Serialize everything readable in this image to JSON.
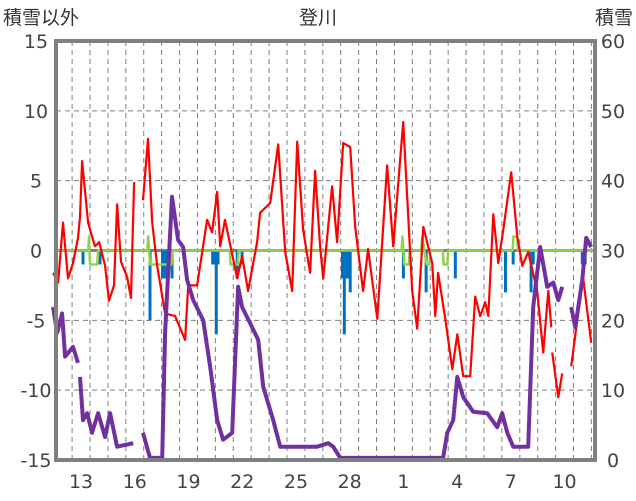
{
  "chart_data": {
    "type": "line",
    "title": "登川",
    "ylabel_left": "積雪以外",
    "ylabel_right": "積雪",
    "ylim_left": [
      -15,
      15
    ],
    "ylim_right": [
      0,
      60
    ],
    "yticks_left": [
      "15",
      "10",
      "5",
      "0",
      "-5",
      "-10",
      "-15"
    ],
    "yticks_right": [
      "60",
      "50",
      "40",
      "30",
      "20",
      "10",
      "0"
    ],
    "xlim_days": [
      -1.4,
      28.7
    ],
    "x_note": "x = days after the 13th",
    "xticks": [
      {
        "t": 0,
        "label": "13"
      },
      {
        "t": 3,
        "label": "16"
      },
      {
        "t": 6,
        "label": "19"
      },
      {
        "t": 9,
        "label": "22"
      },
      {
        "t": 12,
        "label": "25"
      },
      {
        "t": 15,
        "label": "28"
      },
      {
        "t": 18,
        "label": "1"
      },
      {
        "t": 21,
        "label": "4"
      },
      {
        "t": 24,
        "label": "7"
      },
      {
        "t": 27,
        "label": "10"
      }
    ],
    "grid": true,
    "colors": {
      "temperature": "#ff0000",
      "snow": "#7030a0",
      "precip": "#0070c0",
      "green": "#92d050",
      "axis": "#808080"
    },
    "series": [
      {
        "name": "temperature",
        "axis": "left",
        "points": [
          [
            -1.56,
            -1.6
          ],
          [
            -1.28,
            -2.3
          ],
          [
            -1.01,
            2
          ],
          [
            -0.73,
            -2
          ],
          [
            -0.45,
            -0.9
          ],
          [
            -0.17,
            0.9
          ],
          [
            -0.06,
            2.4
          ],
          [
            0.06,
            6.4
          ],
          [
            0.39,
            2
          ],
          [
            0.61,
            1
          ],
          [
            0.78,
            0.3
          ],
          [
            1.01,
            0.6
          ],
          [
            1.34,
            -1.1
          ],
          [
            1.56,
            -3.6
          ],
          [
            1.84,
            -2.5
          ],
          [
            2.01,
            3.3
          ],
          [
            2.23,
            -0.8
          ],
          [
            2.57,
            -1.9
          ],
          [
            2.79,
            -3.4
          ],
          [
            2.96,
            4.9
          ],
          null,
          [
            3.46,
            3.6
          ],
          [
            3.74,
            8
          ],
          [
            3.97,
            2
          ],
          [
            4.25,
            -1.1
          ],
          [
            4.69,
            -4.5
          ],
          [
            5.25,
            -4.7
          ],
          [
            5.81,
            -6.4
          ],
          [
            5.98,
            -2.5
          ],
          [
            6.48,
            -2.5
          ],
          [
            7.04,
            2.2
          ],
          [
            7.32,
            1.3
          ],
          [
            7.6,
            4.2
          ],
          [
            7.77,
            0.3
          ],
          [
            8.04,
            2.2
          ],
          [
            8.72,
            -2
          ],
          [
            8.99,
            -0.4
          ],
          [
            9.33,
            -2.9
          ],
          [
            9.83,
            0.6
          ],
          [
            10,
            2.7
          ],
          [
            10.56,
            3.4
          ],
          [
            11.01,
            7.6
          ],
          [
            11.4,
            -0.1
          ],
          [
            11.79,
            -2.9
          ],
          [
            12.07,
            7.8
          ],
          [
            12.4,
            1.5
          ],
          [
            12.79,
            -1.6
          ],
          [
            13.07,
            5.7
          ],
          [
            13.35,
            0.3
          ],
          [
            13.52,
            -2
          ],
          [
            14.02,
            4.6
          ],
          [
            14.3,
            0.6
          ],
          [
            14.64,
            7.7
          ],
          [
            15.03,
            7.4
          ],
          [
            15.31,
            1.7
          ],
          [
            15.75,
            -2.9
          ],
          [
            16.03,
            0.1
          ],
          [
            16.54,
            -4.9
          ],
          [
            17.09,
            6.1
          ],
          [
            17.43,
            0.3
          ],
          [
            17.99,
            9.2
          ],
          [
            18.49,
            -2.9
          ],
          [
            18.77,
            -5.6
          ],
          [
            19.11,
            1.7
          ],
          [
            19.61,
            -0.9
          ],
          [
            19.78,
            -4.7
          ],
          [
            19.94,
            -1.6
          ],
          [
            20.34,
            -4.9
          ],
          [
            20.73,
            -8.5
          ],
          [
            21.01,
            -6
          ],
          [
            21.34,
            -9
          ],
          [
            21.73,
            -9
          ],
          [
            22.01,
            -3.3
          ],
          [
            22.29,
            -4.7
          ],
          [
            22.57,
            -3.7
          ],
          [
            22.74,
            -4.7
          ],
          [
            23.02,
            2.6
          ],
          [
            23.3,
            -0.9
          ],
          [
            23.58,
            1.5
          ],
          [
            24.02,
            5.6
          ],
          [
            24.36,
            1
          ],
          [
            24.64,
            -1.1
          ],
          [
            24.97,
            -0.1
          ],
          [
            25.47,
            -2.9
          ],
          [
            25.81,
            -7.3
          ],
          [
            26.09,
            -2.9
          ],
          [
            26.26,
            -5.5
          ],
          null,
          [
            26.31,
            -7.3
          ],
          [
            26.65,
            -10.5
          ],
          [
            26.87,
            -8.8
          ],
          null,
          [
            27.37,
            -8.3
          ],
          [
            27.77,
            -4.4
          ],
          [
            28.04,
            -2
          ],
          [
            28.49,
            -6.6
          ]
        ]
      },
      {
        "name": "snow_depth",
        "axis": "right",
        "points": [
          [
            -1.56,
            21.9
          ],
          [
            -1.34,
            18.2
          ],
          [
            -1.06,
            21
          ],
          [
            -0.89,
            14.8
          ],
          [
            -0.45,
            16.2
          ],
          [
            -0.17,
            13.9
          ],
          null,
          [
            -0.06,
            11.9
          ],
          [
            0.11,
            5.7
          ],
          [
            0.34,
            6.7
          ],
          [
            0.61,
            3.9
          ],
          [
            0.95,
            6.7
          ],
          [
            1.34,
            3.3
          ],
          [
            1.62,
            6.7
          ],
          [
            2.01,
            1.9
          ],
          [
            2.91,
            2.4
          ],
          null,
          [
            3.46,
            3.9
          ],
          [
            3.85,
            0.3
          ],
          [
            4.53,
            0.3
          ],
          [
            4.69,
            18.2
          ],
          [
            5.08,
            37.7
          ],
          [
            5.42,
            31.5
          ],
          [
            5.7,
            30.5
          ],
          [
            5.92,
            25.8
          ],
          [
            6.26,
            22.9
          ],
          [
            6.82,
            20
          ],
          [
            7.21,
            13.3
          ],
          [
            7.6,
            5.7
          ],
          [
            7.93,
            2.9
          ],
          [
            8.44,
            3.9
          ],
          [
            8.77,
            24.8
          ],
          [
            8.99,
            21.9
          ],
          [
            9.44,
            19.6
          ],
          [
            9.89,
            17.2
          ],
          [
            10.17,
            10.5
          ],
          [
            10.73,
            5.7
          ],
          [
            11.12,
            1.9
          ],
          [
            13.18,
            1.9
          ],
          [
            13.8,
            2.4
          ],
          [
            14.08,
            1.9
          ],
          [
            14.47,
            0.3
          ],
          [
            20.22,
            0.3
          ],
          [
            20.45,
            3.9
          ],
          [
            20.78,
            5.7
          ],
          [
            21.01,
            11.9
          ],
          [
            21.34,
            9
          ],
          [
            21.9,
            6.9
          ],
          [
            22.68,
            6.7
          ],
          [
            23.24,
            4.7
          ],
          [
            23.52,
            6.7
          ],
          [
            23.8,
            3.9
          ],
          [
            24.13,
            1.9
          ],
          [
            24.97,
            1.9
          ],
          [
            25.25,
            21.9
          ],
          [
            25.64,
            30.5
          ],
          [
            26.03,
            24.8
          ],
          [
            26.37,
            25.4
          ],
          [
            26.65,
            22.9
          ],
          [
            26.87,
            24.8
          ],
          null,
          [
            27.37,
            21.9
          ],
          [
            27.6,
            19
          ],
          [
            27.99,
            25.8
          ],
          [
            28.21,
            31.8
          ],
          [
            28.49,
            30.5
          ]
        ]
      },
      {
        "name": "green",
        "axis": "left",
        "points": [
          [
            -1.4,
            0
          ],
          [
            0.4,
            0
          ],
          [
            0.45,
            1
          ],
          [
            0.5,
            -1
          ],
          [
            0.9,
            -1
          ],
          [
            0.95,
            0
          ],
          [
            3.7,
            0
          ],
          [
            3.75,
            1
          ],
          [
            3.85,
            -1
          ],
          [
            5.05,
            -1
          ],
          [
            5.1,
            0
          ],
          [
            8.3,
            0
          ],
          [
            8.35,
            -1
          ],
          [
            8.75,
            -1
          ],
          [
            8.8,
            0
          ],
          [
            17.9,
            0
          ],
          [
            17.95,
            1
          ],
          [
            18.05,
            -1
          ],
          [
            18.3,
            -1
          ],
          [
            18.35,
            0
          ],
          [
            19.0,
            0
          ],
          [
            19.05,
            1
          ],
          [
            19.3,
            -1
          ],
          [
            19.45,
            -1
          ],
          [
            19.5,
            0
          ],
          [
            20.2,
            0
          ],
          [
            20.25,
            -1
          ],
          [
            20.45,
            -1
          ],
          [
            20.5,
            0
          ],
          [
            24.1,
            0
          ],
          [
            24.15,
            1
          ],
          [
            24.35,
            1
          ],
          [
            24.4,
            0
          ],
          [
            28.7,
            0
          ]
        ]
      }
    ],
    "precip_bars": [
      [
        0.11,
        -1
      ],
      [
        1.06,
        -1
      ],
      [
        3.85,
        -5
      ],
      [
        4.55,
        -2
      ],
      [
        4.65,
        -2
      ],
      [
        4.75,
        -2
      ],
      [
        5.08,
        -2
      ],
      [
        7.35,
        -1
      ],
      [
        7.45,
        -1
      ],
      [
        7.55,
        -6
      ],
      [
        7.65,
        -1
      ],
      [
        8.72,
        -2
      ],
      [
        8.99,
        -1
      ],
      [
        14.6,
        -2
      ],
      [
        14.7,
        -6
      ],
      [
        14.8,
        -2
      ],
      [
        14.9,
        -2
      ],
      [
        15.03,
        -3
      ],
      [
        18.0,
        -2
      ],
      [
        19.27,
        -3
      ],
      [
        20.9,
        -2
      ],
      [
        23.7,
        -3
      ],
      [
        24.13,
        -1
      ],
      [
        25.13,
        -3
      ],
      [
        25.25,
        -1
      ],
      [
        27.99,
        -1
      ],
      [
        28.15,
        -1
      ]
    ]
  }
}
